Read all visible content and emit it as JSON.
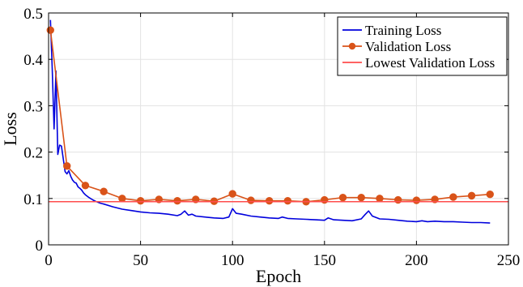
{
  "chart_data": {
    "type": "line",
    "title": "",
    "xlabel": "Epoch",
    "ylabel": "Loss",
    "xlim": [
      0,
      250
    ],
    "ylim": [
      0,
      0.5
    ],
    "xticks": [
      0,
      50,
      100,
      150,
      200,
      250
    ],
    "yticks": [
      0,
      0.1,
      0.2,
      0.3,
      0.4,
      0.5
    ],
    "xtick_labels": [
      "0",
      "50",
      "100",
      "150",
      "200",
      "250"
    ],
    "ytick_labels": [
      "0",
      "0.1",
      "0.2",
      "0.3",
      "0.4",
      "0.5"
    ],
    "grid": true,
    "legend_position": "top-right",
    "series": [
      {
        "name": "Training Loss",
        "color": "#0000dd",
        "marker": "none",
        "x": [
          1,
          2,
          3,
          4,
          5,
          6,
          7,
          8,
          9,
          10,
          11,
          12,
          13,
          14,
          15,
          16,
          17,
          18,
          19,
          20,
          22,
          24,
          26,
          28,
          30,
          35,
          40,
          45,
          50,
          55,
          60,
          65,
          70,
          72,
          74,
          76,
          78,
          80,
          85,
          90,
          95,
          98,
          100,
          102,
          105,
          110,
          115,
          120,
          125,
          127,
          130,
          135,
          140,
          145,
          150,
          152,
          155,
          160,
          165,
          170,
          172,
          174,
          176,
          180,
          185,
          190,
          195,
          200,
          203,
          206,
          210,
          215,
          220,
          225,
          230,
          235,
          240
        ],
        "y": [
          0.485,
          0.38,
          0.25,
          0.375,
          0.195,
          0.215,
          0.213,
          0.185,
          0.158,
          0.153,
          0.16,
          0.148,
          0.14,
          0.135,
          0.133,
          0.125,
          0.122,
          0.118,
          0.112,
          0.108,
          0.102,
          0.097,
          0.093,
          0.09,
          0.088,
          0.082,
          0.077,
          0.074,
          0.071,
          0.069,
          0.068,
          0.066,
          0.063,
          0.066,
          0.073,
          0.064,
          0.066,
          0.062,
          0.06,
          0.058,
          0.057,
          0.06,
          0.078,
          0.068,
          0.066,
          0.062,
          0.06,
          0.058,
          0.057,
          0.06,
          0.057,
          0.056,
          0.055,
          0.054,
          0.053,
          0.058,
          0.054,
          0.053,
          0.052,
          0.056,
          0.065,
          0.073,
          0.062,
          0.056,
          0.055,
          0.053,
          0.051,
          0.05,
          0.052,
          0.05,
          0.051,
          0.05,
          0.05,
          0.049,
          0.048,
          0.048,
          0.047
        ]
      },
      {
        "name": "Validation Loss",
        "color": "#d95319",
        "marker": "circle",
        "x": [
          1,
          10,
          20,
          30,
          40,
          50,
          60,
          70,
          80,
          90,
          100,
          110,
          120,
          130,
          140,
          150,
          160,
          170,
          180,
          190,
          200,
          210,
          220,
          230,
          240
        ],
        "y": [
          0.463,
          0.17,
          0.128,
          0.115,
          0.1,
          0.095,
          0.098,
          0.095,
          0.098,
          0.094,
          0.11,
          0.096,
          0.095,
          0.095,
          0.093,
          0.097,
          0.102,
          0.102,
          0.1,
          0.097,
          0.096,
          0.098,
          0.103,
          0.106,
          0.109
        ]
      },
      {
        "name": "Lowest Validation Loss",
        "color": "#ff4d4d",
        "marker": "none",
        "type": "hline",
        "y": 0.093
      }
    ]
  }
}
